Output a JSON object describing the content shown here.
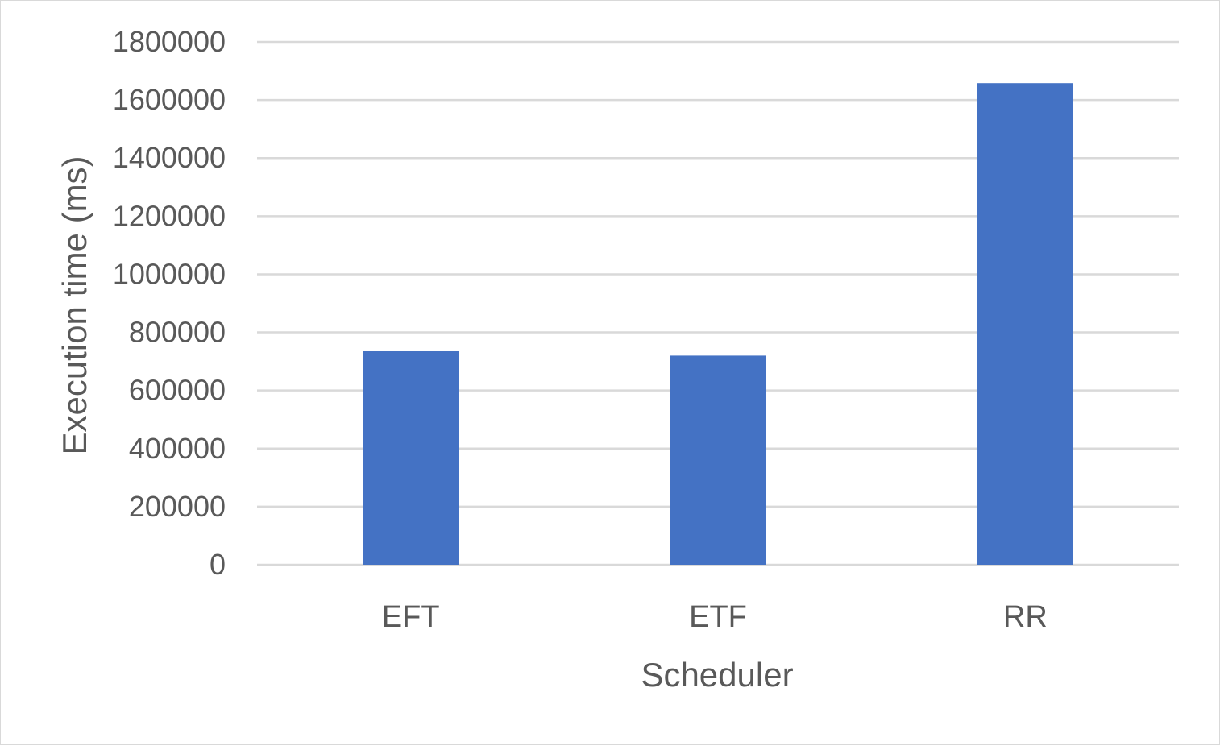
{
  "chart_data": {
    "type": "bar",
    "categories": [
      "EFT",
      "ETF",
      "RR"
    ],
    "values": [
      735000,
      720000,
      1658000
    ],
    "title": "",
    "xlabel": "Scheduler",
    "ylabel": "Execution time (ms)",
    "ylim": [
      0,
      1800000
    ],
    "yticks": [
      0,
      200000,
      400000,
      600000,
      800000,
      1000000,
      1200000,
      1400000,
      1600000,
      1800000
    ],
    "ytick_labels": [
      "0",
      "200000",
      "400000",
      "600000",
      "800000",
      "1000000",
      "1200000",
      "1400000",
      "1600000",
      "1800000"
    ],
    "grid": true,
    "legend": "none",
    "bar_color": "#4472c4"
  }
}
